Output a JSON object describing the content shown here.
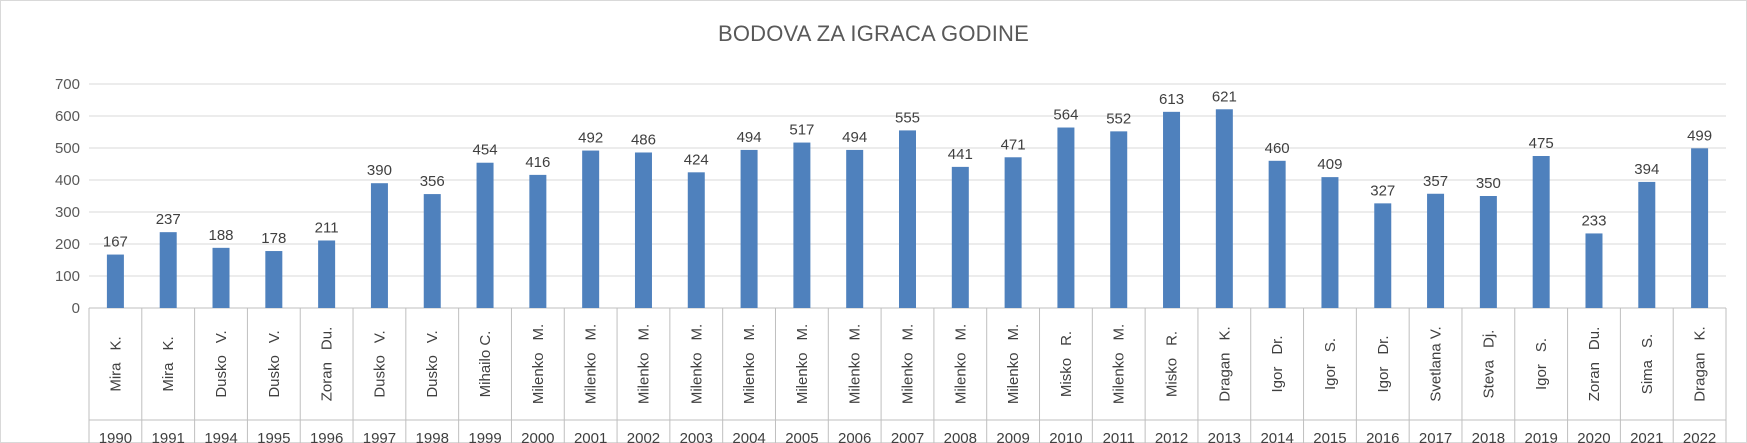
{
  "chart_data": {
    "type": "bar",
    "title": "BODOVA ZA IGRACA GODINE",
    "xlabel": "",
    "ylabel": "",
    "ylim": [
      0,
      700
    ],
    "y_ticks": [
      0,
      100,
      200,
      300,
      400,
      500,
      600,
      700
    ],
    "grid": true,
    "legend": "none",
    "bar_color": "#4f81bd",
    "categories": [
      {
        "name": "Mira K.",
        "name_parts": [
          "Mira",
          "K."
        ],
        "year": "1990"
      },
      {
        "name": "Mira K.",
        "name_parts": [
          "Mira",
          "K."
        ],
        "year": "1991"
      },
      {
        "name": "Dusko V.",
        "name_parts": [
          "Dusko",
          "V."
        ],
        "year": "1994"
      },
      {
        "name": "Dusko V.",
        "name_parts": [
          "Dusko",
          "V."
        ],
        "year": "1995"
      },
      {
        "name": "Zoran Du.",
        "name_parts": [
          "Zoran",
          "Du."
        ],
        "year": "1996"
      },
      {
        "name": "Dusko V.",
        "name_parts": [
          "Dusko",
          "V."
        ],
        "year": "1997"
      },
      {
        "name": "Dusko V.",
        "name_parts": [
          "Dusko",
          "V."
        ],
        "year": "1998"
      },
      {
        "name": "Mihailo C.",
        "name_parts": [
          "Mihailo C."
        ],
        "year": "1999"
      },
      {
        "name": "Milenko M.",
        "name_parts": [
          "Milenko",
          "M."
        ],
        "year": "2000"
      },
      {
        "name": "Milenko M.",
        "name_parts": [
          "Milenko",
          "M."
        ],
        "year": "2001"
      },
      {
        "name": "Milenko M.",
        "name_parts": [
          "Milenko",
          "M."
        ],
        "year": "2002"
      },
      {
        "name": "Milenko M.",
        "name_parts": [
          "Milenko",
          "M."
        ],
        "year": "2003"
      },
      {
        "name": "Milenko M.",
        "name_parts": [
          "Milenko",
          "M."
        ],
        "year": "2004"
      },
      {
        "name": "Milenko M.",
        "name_parts": [
          "Milenko",
          "M."
        ],
        "year": "2005"
      },
      {
        "name": "Milenko M.",
        "name_parts": [
          "Milenko",
          "M."
        ],
        "year": "2006"
      },
      {
        "name": "Milenko M.",
        "name_parts": [
          "Milenko",
          "M."
        ],
        "year": "2007"
      },
      {
        "name": "Milenko M.",
        "name_parts": [
          "Milenko",
          "M."
        ],
        "year": "2008"
      },
      {
        "name": "Milenko M.",
        "name_parts": [
          "Milenko",
          "M."
        ],
        "year": "2009"
      },
      {
        "name": "Misko R.",
        "name_parts": [
          "Misko",
          "R."
        ],
        "year": "2010"
      },
      {
        "name": "Milenko M.",
        "name_parts": [
          "Milenko",
          "M."
        ],
        "year": "2011"
      },
      {
        "name": "Misko R.",
        "name_parts": [
          "Misko",
          "R."
        ],
        "year": "2012"
      },
      {
        "name": "Dragan K.",
        "name_parts": [
          "Dragan",
          "K."
        ],
        "year": "2013"
      },
      {
        "name": "Igor Dr.",
        "name_parts": [
          "Igor",
          "Dr."
        ],
        "year": "2014"
      },
      {
        "name": "Igor S.",
        "name_parts": [
          "Igor",
          "S."
        ],
        "year": "2015"
      },
      {
        "name": "Igor Dr.",
        "name_parts": [
          "Igor",
          "Dr."
        ],
        "year": "2016"
      },
      {
        "name": "Svetlana V.",
        "name_parts": [
          "Svetlana V."
        ],
        "year": "2017"
      },
      {
        "name": "Steva Dj.",
        "name_parts": [
          "Steva",
          "Dj."
        ],
        "year": "2018"
      },
      {
        "name": "Igor S.",
        "name_parts": [
          "Igor",
          "S."
        ],
        "year": "2019"
      },
      {
        "name": "Zoran Du.",
        "name_parts": [
          "Zoran",
          "Du."
        ],
        "year": "2020"
      },
      {
        "name": "Sima S.",
        "name_parts": [
          "Sima",
          "S."
        ],
        "year": "2021"
      },
      {
        "name": "Dragan K.",
        "name_parts": [
          "Dragan",
          "K."
        ],
        "year": "2022"
      }
    ],
    "values": [
      167,
      237,
      188,
      178,
      211,
      390,
      356,
      454,
      416,
      492,
      486,
      424,
      494,
      517,
      494,
      555,
      441,
      471,
      564,
      552,
      613,
      621,
      460,
      409,
      327,
      357,
      350,
      475,
      233,
      394,
      499
    ]
  }
}
